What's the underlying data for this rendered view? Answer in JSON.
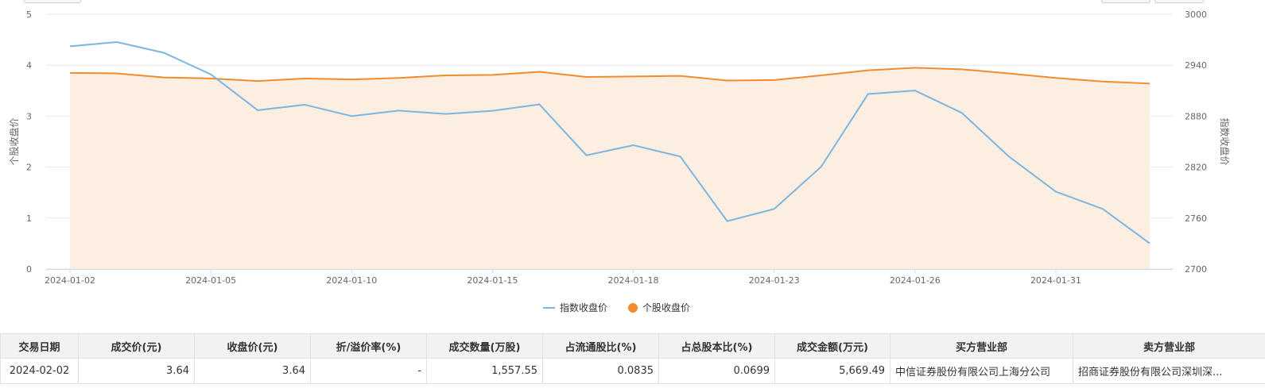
{
  "chart_data": {
    "type": "line",
    "x": [
      "2024-01-02",
      "2024-01-03",
      "2024-01-04",
      "2024-01-05",
      "2024-01-08",
      "2024-01-09",
      "2024-01-10",
      "2024-01-11",
      "2024-01-12",
      "2024-01-15",
      "2024-01-16",
      "2024-01-17",
      "2024-01-18",
      "2024-01-19",
      "2024-01-22",
      "2024-01-23",
      "2024-01-24",
      "2024-01-25",
      "2024-01-26",
      "2024-01-29",
      "2024-01-30",
      "2024-01-31",
      "2024-02-01",
      "2024-02-02"
    ],
    "x_tick_labels": [
      "2024-01-02",
      "2024-01-05",
      "2024-01-10",
      "2024-01-15",
      "2024-01-18",
      "2024-01-23",
      "2024-01-26",
      "2024-01-31"
    ],
    "series": [
      {
        "name": "指数收盘价",
        "axis": "right",
        "color": "#7cb5e0",
        "values": [
          2962.3,
          2967.3,
          2954.7,
          2929.2,
          2887.0,
          2893.5,
          2880.0,
          2886.6,
          2882.6,
          2886.3,
          2893.9,
          2833.9,
          2845.8,
          2832.5,
          2756.3,
          2770.7,
          2820.3,
          2906.1,
          2910.2,
          2883.8,
          2832.5,
          2791.1,
          2770.7,
          2730.2
        ]
      },
      {
        "name": "个股收盘价",
        "axis": "left",
        "color": "#f08c2e",
        "fill": "#fdeee2",
        "values": [
          3.85,
          3.84,
          3.76,
          3.74,
          3.69,
          3.74,
          3.72,
          3.75,
          3.8,
          3.81,
          3.87,
          3.77,
          3.78,
          3.79,
          3.7,
          3.71,
          3.8,
          3.9,
          3.95,
          3.92,
          3.84,
          3.75,
          3.68,
          3.64
        ]
      }
    ],
    "y_left": {
      "label": "个股收盘价",
      "min": 0,
      "max": 5,
      "ticks": [
        "0",
        "1",
        "2",
        "3",
        "4",
        "5"
      ]
    },
    "y_right": {
      "label": "指数收盘价",
      "min": 2700,
      "max": 3000,
      "ticks": [
        "2700",
        "2760",
        "2820",
        "2880",
        "2940",
        "3000"
      ]
    },
    "grid": true,
    "legend_position": "bottom-center"
  },
  "table": {
    "headers": [
      "交易日期",
      "成交价(元)",
      "收盘价(元)",
      "折/溢价率(%)",
      "成交数量(万股)",
      "占流通股比(%)",
      "占总股本比(%)",
      "成交金额(万元)",
      "买方营业部",
      "卖方营业部"
    ],
    "rows": [
      [
        "2024-02-02",
        "3.64",
        "3.64",
        "-",
        "1,557.55",
        "0.0835",
        "0.0699",
        "5,669.49",
        "中信证券股份有限公司上海分公司",
        "招商证券股份有限公司深圳深..."
      ]
    ]
  }
}
